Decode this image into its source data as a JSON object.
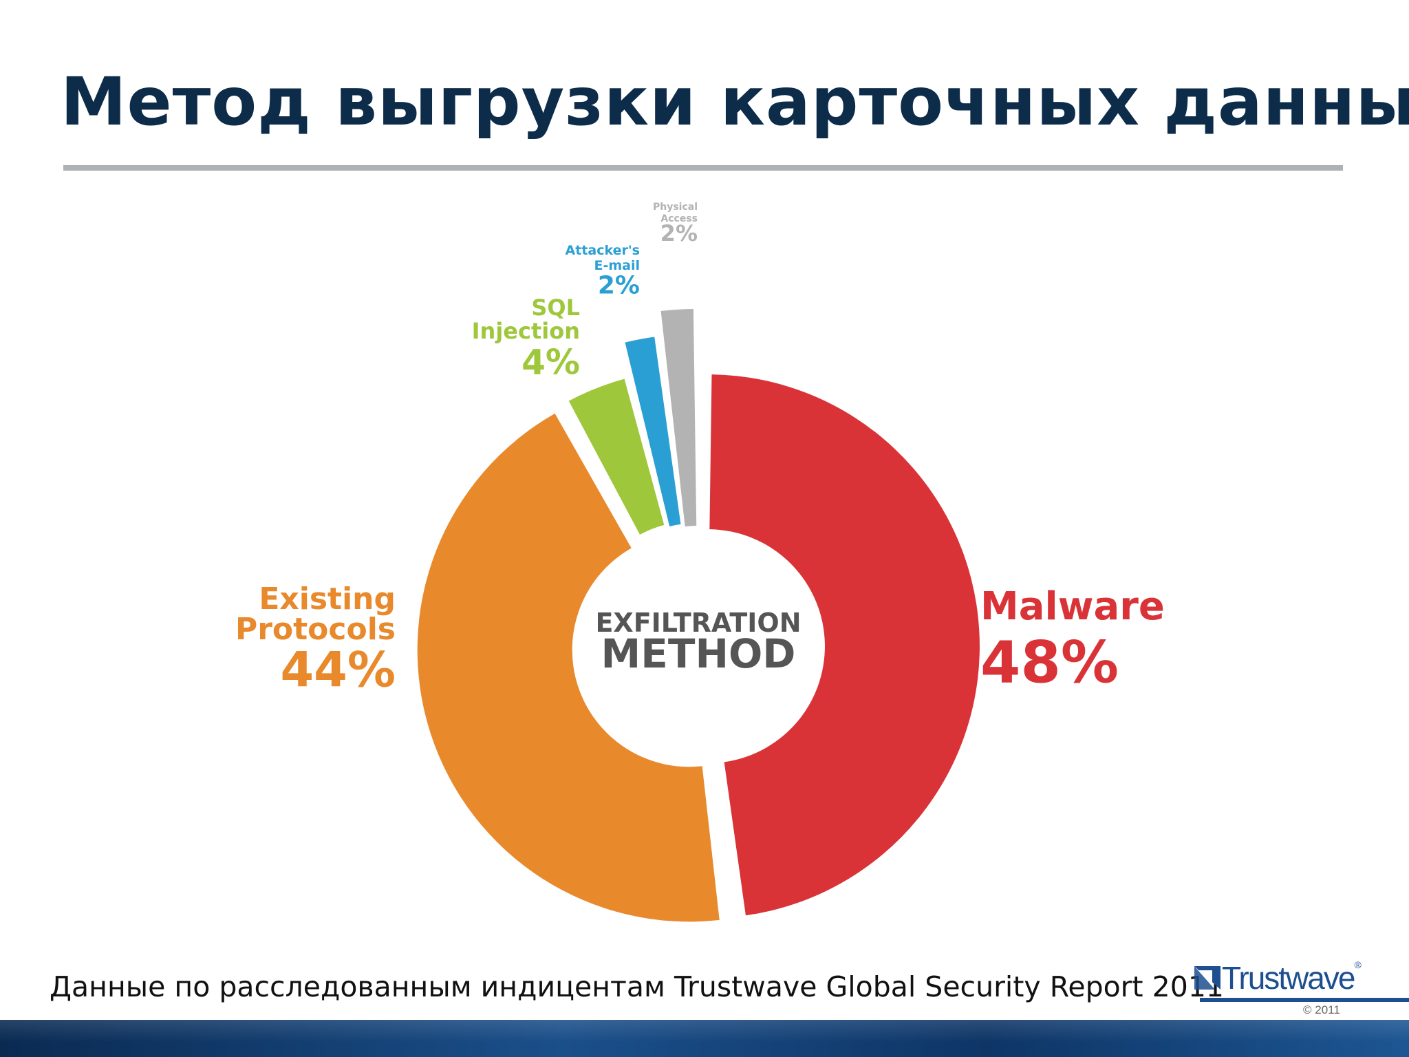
{
  "slide": {
    "title": "Метод выгрузки карточных данных",
    "caption": "Данные по расследованным индицентам Trustwave Global Security Report 2011"
  },
  "logo": {
    "brand": "Trustwave",
    "registered": "®",
    "copyright": "© 2011"
  },
  "colors": {
    "title": "#0d2c4a",
    "malware": "#d93338",
    "existing": "#e8892c",
    "sql": "#9ec73c",
    "email": "#2a9fd4",
    "physical": "#b3b3b3"
  },
  "chart_data": {
    "type": "pie",
    "style": "donut",
    "center_label": [
      "EXFILTRATION",
      "METHOD"
    ],
    "title": "",
    "slices": [
      {
        "label": [
          "Malware"
        ],
        "value": 48,
        "display": "48%"
      },
      {
        "label": [
          "Existing",
          "Protocols"
        ],
        "value": 44,
        "display": "44%"
      },
      {
        "label": [
          "SQL",
          "Injection"
        ],
        "value": 4,
        "display": "4%"
      },
      {
        "label": [
          "Attacker's",
          "E-mail"
        ],
        "value": 2,
        "display": "2%"
      },
      {
        "label": [
          "Physical",
          "Access"
        ],
        "value": 2,
        "display": "2%"
      }
    ]
  }
}
